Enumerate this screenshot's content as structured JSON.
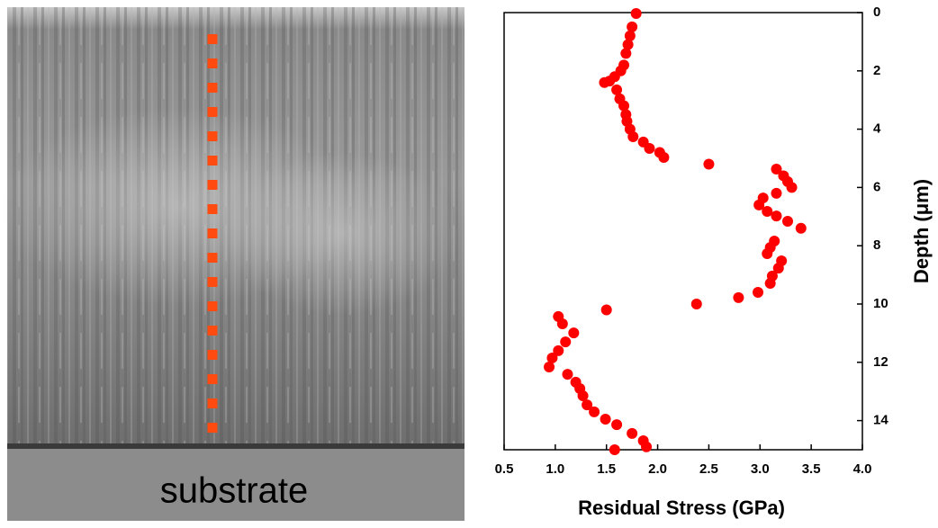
{
  "image": {
    "label": "substrate"
  },
  "chart_data": {
    "type": "scatter",
    "xlabel": "Residual Stress (GPa)",
    "ylabel": "Depth (μm)",
    "xlim": [
      0.5,
      4.0
    ],
    "xticks": [
      {
        "value": 0.5,
        "label": "0.5"
      },
      {
        "value": 1,
        "label": "1.0"
      },
      {
        "value": 1.5,
        "label": "1.5"
      },
      {
        "value": 2,
        "label": "2.0"
      },
      {
        "value": 2.5,
        "label": "2.5"
      },
      {
        "value": 3,
        "label": "3.0"
      },
      {
        "value": 3.5,
        "label": "3.5"
      },
      {
        "value": 4,
        "label": "4.0"
      }
    ],
    "ylim": [
      0,
      15
    ],
    "yticks": [
      0,
      2,
      4,
      6,
      8,
      10,
      12,
      14
    ],
    "y_inverted": true,
    "y_axis_side": "right",
    "color": "#ff0000",
    "x": [
      1.79,
      1.75,
      1.73,
      1.71,
      1.69,
      1.67,
      1.64,
      1.58,
      1.53,
      1.48,
      1.6,
      1.63,
      1.67,
      1.69,
      1.7,
      1.73,
      1.76,
      1.86,
      1.92,
      2.02,
      2.06,
      2.5,
      3.16,
      3.23,
      3.27,
      3.31,
      3.16,
      3.03,
      2.99,
      3.07,
      3.16,
      3.27,
      3.4,
      3.14,
      3.1,
      3.07,
      3.21,
      3.18,
      3.12,
      3.1,
      2.98,
      2.79,
      2.38,
      1.5,
      1.03,
      1.07,
      1.18,
      1.1,
      1.03,
      0.97,
      0.94,
      1.12,
      1.2,
      1.24,
      1.27,
      1.31,
      1.38,
      1.49,
      1.6,
      1.75,
      1.86,
      1.89,
      1.58
    ],
    "values": [
      0.03,
      0.49,
      0.8,
      1.1,
      1.4,
      1.8,
      2.0,
      2.2,
      2.35,
      2.4,
      2.65,
      2.96,
      3.2,
      3.5,
      3.73,
      4.0,
      4.26,
      4.44,
      4.66,
      4.8,
      4.97,
      5.2,
      5.37,
      5.6,
      5.8,
      6.0,
      6.2,
      6.36,
      6.6,
      6.82,
      6.98,
      7.16,
      7.4,
      7.84,
      8.06,
      8.27,
      8.52,
      8.77,
      9.04,
      9.29,
      9.6,
      9.78,
      10.0,
      10.2,
      10.43,
      10.68,
      10.99,
      11.3,
      11.6,
      11.85,
      12.16,
      12.41,
      12.68,
      12.9,
      13.15,
      13.46,
      13.7,
      13.95,
      14.14,
      14.44,
      14.69,
      14.9,
      15.0
    ]
  }
}
